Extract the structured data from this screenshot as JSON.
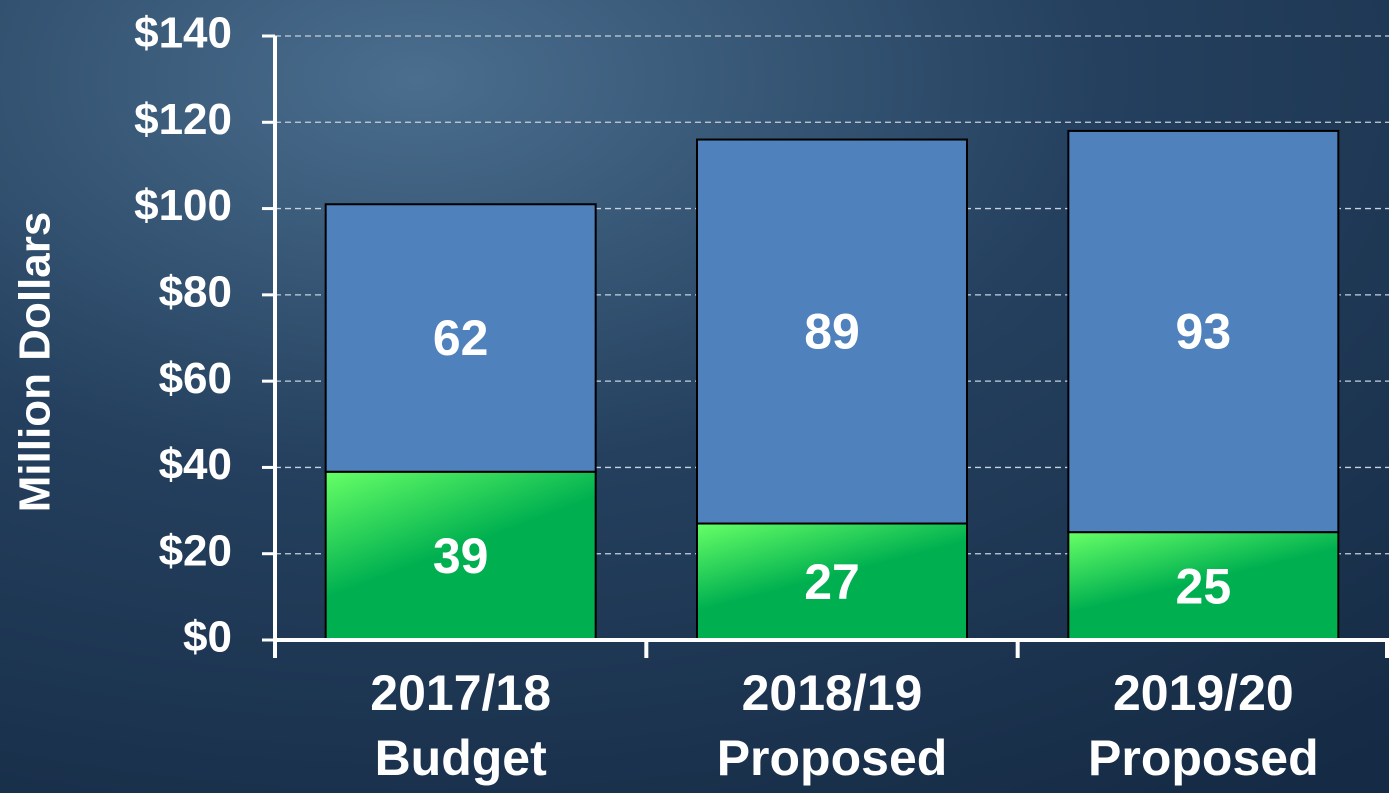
{
  "chart_data": {
    "type": "stacked_bar",
    "ylabel": "Million Dollars",
    "categories": [
      [
        "2017/18",
        "Budget"
      ],
      [
        "2018/19",
        "Proposed"
      ],
      [
        "2019/20",
        "Proposed"
      ]
    ],
    "series": [
      {
        "color": "#00b050",
        "values": [
          39,
          27,
          25
        ]
      },
      {
        "color": "#4f81bd",
        "values": [
          62,
          89,
          93
        ]
      }
    ],
    "ylim": [
      0,
      140
    ],
    "yticks": [
      {
        "value": 0,
        "label": "$0"
      },
      {
        "value": 20,
        "label": "$20"
      },
      {
        "value": 40,
        "label": "$40"
      },
      {
        "value": 60,
        "label": "$60"
      },
      {
        "value": 80,
        "label": "$80"
      },
      {
        "value": 100,
        "label": "$100"
      },
      {
        "value": 120,
        "label": "$120"
      },
      {
        "value": 140,
        "label": "$140"
      }
    ],
    "grid": true
  }
}
